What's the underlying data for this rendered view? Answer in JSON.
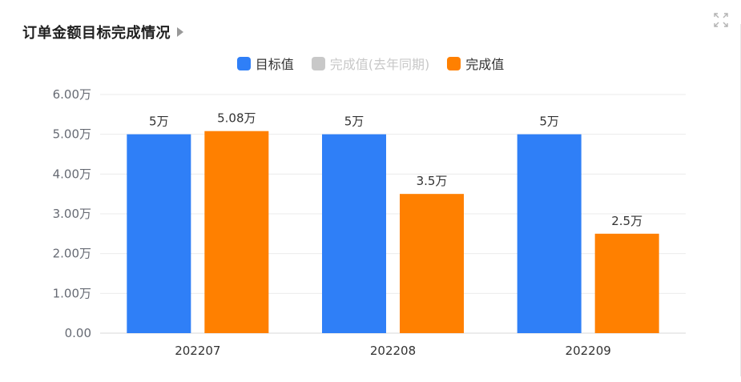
{
  "header": {
    "title": "订单金额目标完成情况",
    "caret_icon": "caret-right-icon",
    "fullscreen_icon": "expand-icon"
  },
  "legend": [
    {
      "label": "目标值",
      "color": "#2f7ff7",
      "enabled": true
    },
    {
      "label": "完成值(去年同期)",
      "color": "#c8c8c8",
      "enabled": false
    },
    {
      "label": "完成值",
      "color": "#ff8000",
      "enabled": true
    }
  ],
  "chart_data": {
    "type": "bar",
    "title": "订单金额目标完成情况",
    "xlabel": "",
    "ylabel": "",
    "categories": [
      "202207",
      "202208",
      "202209"
    ],
    "series": [
      {
        "name": "目标值",
        "color": "#2f7ff7",
        "values": [
          5,
          5,
          5
        ],
        "labels": [
          "5万",
          "5万",
          "5万"
        ]
      },
      {
        "name": "完成值",
        "color": "#ff8000",
        "values": [
          5.08,
          3.5,
          2.5
        ],
        "labels": [
          "5.08万",
          "3.5万",
          "2.5万"
        ]
      }
    ],
    "ylim": [
      0,
      6
    ],
    "yticks": [
      0,
      1,
      2,
      3,
      4,
      5,
      6
    ],
    "ytick_labels": [
      "0.00",
      "1.00万",
      "2.00万",
      "3.00万",
      "4.00万",
      "5.00万",
      "6.00万"
    ],
    "grid": true,
    "legend_position": "top-center"
  }
}
